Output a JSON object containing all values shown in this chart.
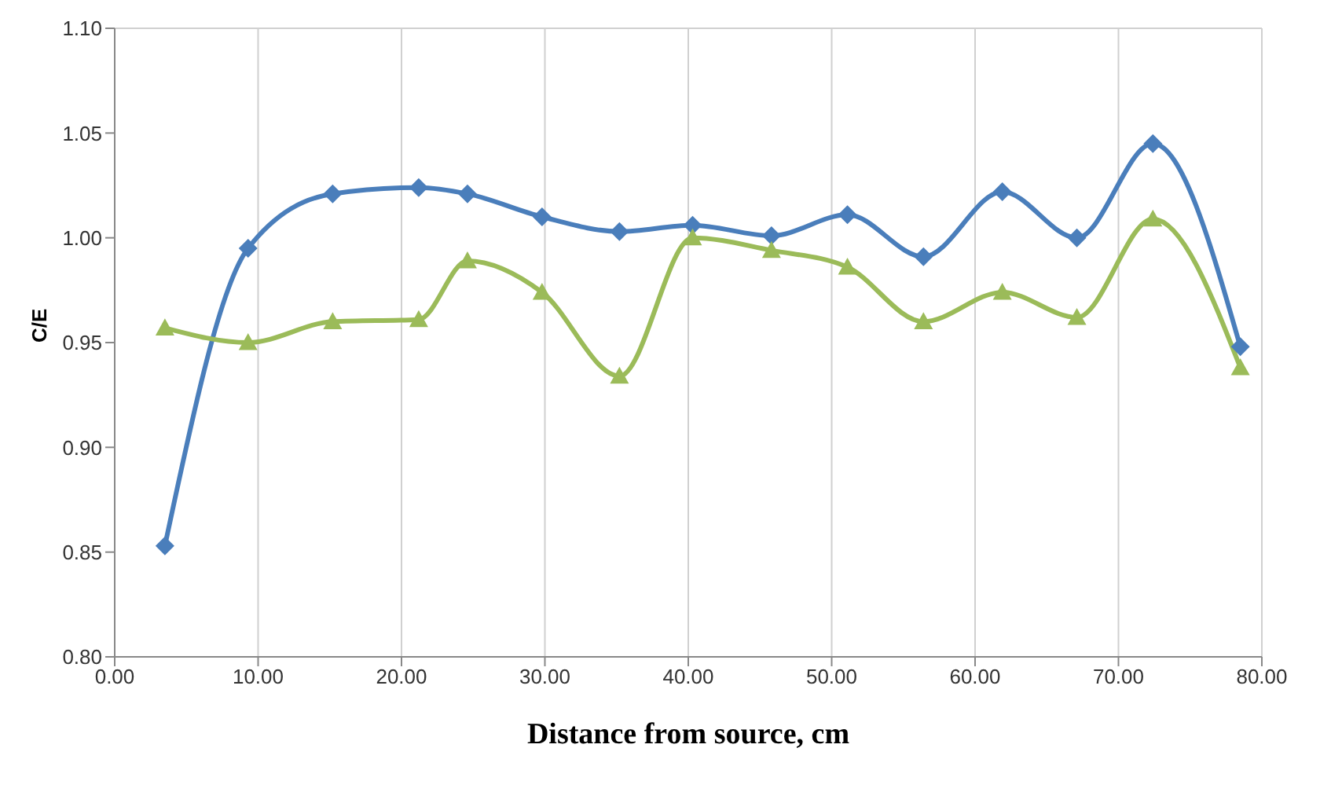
{
  "chart_data": {
    "type": "line",
    "xlabel": "Distance from source, cm",
    "ylabel": "C/E",
    "x": [
      3.5,
      9.3,
      15.2,
      21.2,
      24.6,
      29.8,
      35.2,
      40.3,
      45.8,
      51.1,
      56.4,
      61.9,
      67.1,
      72.4,
      78.5
    ],
    "series": [
      {
        "color": "#4a7ebb",
        "marker": "diamond",
        "values": [
          0.853,
          0.995,
          1.021,
          1.024,
          1.021,
          1.01,
          1.003,
          1.006,
          1.001,
          1.011,
          0.991,
          1.022,
          1.0,
          1.045,
          0.948
        ]
      },
      {
        "color": "#9bbb59",
        "marker": "triangle",
        "values": [
          0.957,
          0.95,
          0.96,
          0.961,
          0.989,
          0.974,
          0.934,
          1.0,
          0.994,
          0.986,
          0.96,
          0.974,
          0.962,
          1.009,
          0.938
        ]
      }
    ],
    "xlim": [
      0,
      80
    ],
    "xticks": [
      {
        "value": 0,
        "label": "0.00"
      },
      {
        "value": 10,
        "label": "10.00"
      },
      {
        "value": 20,
        "label": "20.00"
      },
      {
        "value": 30,
        "label": "30.00"
      },
      {
        "value": 40,
        "label": "40.00"
      },
      {
        "value": 50,
        "label": "50.00"
      },
      {
        "value": 60,
        "label": "60.00"
      },
      {
        "value": 70,
        "label": "70.00"
      },
      {
        "value": 80,
        "label": "80.00"
      }
    ],
    "ylim": [
      0.8,
      1.1
    ],
    "yticks": [
      {
        "value": 0.8,
        "label": "0.80"
      },
      {
        "value": 0.85,
        "label": "0.85"
      },
      {
        "value": 0.9,
        "label": "0.90"
      },
      {
        "value": 0.95,
        "label": "0.95"
      },
      {
        "value": 1.0,
        "label": "1.00"
      },
      {
        "value": 1.05,
        "label": "1.05"
      },
      {
        "value": 1.1,
        "label": "1.10"
      }
    ],
    "grid": true,
    "line_style": "solid"
  }
}
